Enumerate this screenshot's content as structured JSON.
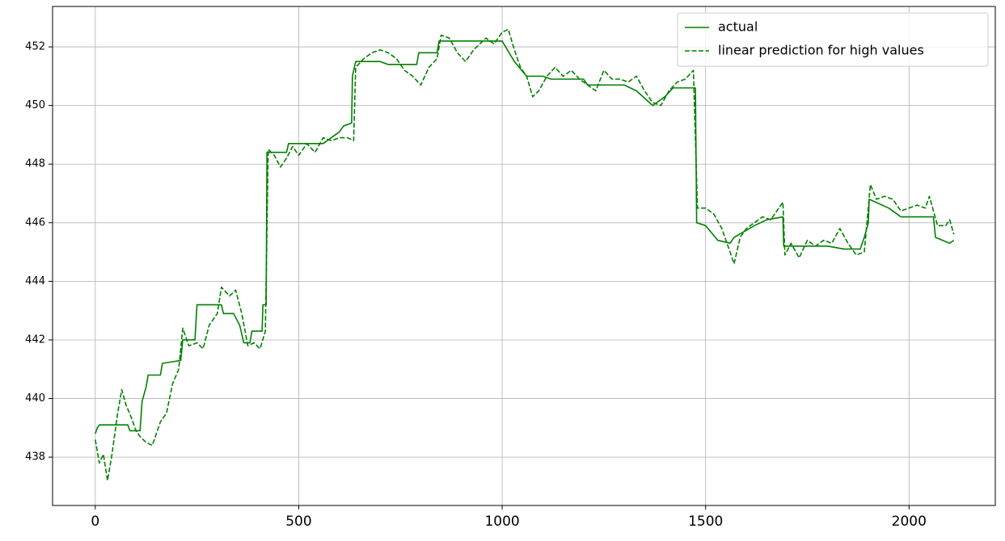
{
  "chart_data": {
    "type": "line",
    "xlim": [
      -105,
      2212
    ],
    "ylim": [
      436.35,
      453.38
    ],
    "xticks": [
      0,
      500,
      1000,
      1500,
      2000
    ],
    "yticks": [
      438,
      440,
      442,
      444,
      446,
      448,
      450,
      452
    ],
    "grid": true,
    "legend": "upper right",
    "series": [
      {
        "name": "actual",
        "color": "#008000",
        "dash": "solid",
        "x": [
          0,
          5,
          10,
          80,
          85,
          110,
          115,
          125,
          130,
          160,
          165,
          210,
          215,
          245,
          250,
          310,
          315,
          340,
          355,
          365,
          380,
          385,
          410,
          412,
          420,
          422,
          470,
          475,
          560,
          600,
          610,
          630,
          632,
          640,
          700,
          720,
          790,
          795,
          840,
          845,
          990,
          1000,
          1030,
          1060,
          1100,
          1120,
          1200,
          1210,
          1300,
          1330,
          1370,
          1400,
          1420,
          1475,
          1478,
          1500,
          1530,
          1560,
          1570,
          1620,
          1650,
          1690,
          1692,
          1750,
          1800,
          1840,
          1880,
          1890,
          1900,
          1902,
          1950,
          1980,
          2060,
          2065,
          2100,
          2110
        ],
        "values": [
          438.8,
          439.0,
          439.1,
          439.1,
          438.9,
          438.9,
          439.9,
          440.4,
          440.8,
          440.8,
          441.2,
          441.3,
          442.0,
          442.0,
          443.2,
          443.2,
          442.9,
          442.9,
          442.5,
          441.9,
          441.9,
          442.3,
          442.3,
          443.2,
          443.2,
          448.4,
          448.4,
          448.7,
          448.7,
          449.1,
          449.3,
          449.4,
          451.0,
          451.5,
          451.5,
          451.4,
          451.4,
          451.8,
          451.8,
          452.2,
          452.2,
          452.2,
          451.5,
          451.0,
          451.0,
          450.9,
          450.9,
          450.7,
          450.7,
          450.5,
          450.0,
          450.3,
          450.6,
          450.6,
          446.0,
          445.9,
          445.4,
          445.3,
          445.5,
          445.9,
          446.1,
          446.2,
          445.2,
          445.2,
          445.2,
          445.1,
          445.1,
          445.5,
          446.0,
          446.8,
          446.5,
          446.2,
          446.2,
          445.5,
          445.3,
          445.4
        ]
      },
      {
        "name": "linear prediction for high values",
        "color": "#008000",
        "dash": "dashed",
        "x": [
          0,
          10,
          20,
          30,
          40,
          55,
          65,
          75,
          90,
          100,
          110,
          125,
          140,
          160,
          175,
          190,
          205,
          215,
          230,
          250,
          265,
          280,
          300,
          310,
          330,
          345,
          360,
          375,
          390,
          405,
          418,
          425,
          440,
          455,
          470,
          485,
          500,
          520,
          540,
          560,
          580,
          600,
          620,
          635,
          640,
          660,
          680,
          700,
          720,
          740,
          760,
          780,
          800,
          820,
          840,
          850,
          870,
          890,
          910,
          930,
          960,
          980,
          1000,
          1015,
          1030,
          1045,
          1060,
          1075,
          1090,
          1110,
          1130,
          1150,
          1170,
          1190,
          1210,
          1230,
          1250,
          1270,
          1290,
          1310,
          1330,
          1350,
          1370,
          1390,
          1410,
          1430,
          1450,
          1470,
          1480,
          1500,
          1520,
          1540,
          1560,
          1570,
          1585,
          1600,
          1620,
          1640,
          1660,
          1680,
          1690,
          1695,
          1710,
          1730,
          1750,
          1770,
          1790,
          1810,
          1830,
          1850,
          1870,
          1890,
          1905,
          1920,
          1940,
          1960,
          1980,
          2000,
          2020,
          2040,
          2050,
          2070,
          2090,
          2100,
          2110
        ],
        "values": [
          438.6,
          437.8,
          438.1,
          437.2,
          438.0,
          439.5,
          440.3,
          439.8,
          439.3,
          438.9,
          438.7,
          438.5,
          438.4,
          439.2,
          439.5,
          440.5,
          441.0,
          442.4,
          441.8,
          441.9,
          441.7,
          442.5,
          442.9,
          443.8,
          443.5,
          443.7,
          442.9,
          441.8,
          441.9,
          441.7,
          442.3,
          448.5,
          448.3,
          447.9,
          448.2,
          448.6,
          448.3,
          448.7,
          448.4,
          448.9,
          448.8,
          448.9,
          448.9,
          448.8,
          451.3,
          451.6,
          451.8,
          451.9,
          451.8,
          451.6,
          451.2,
          451.0,
          450.7,
          451.3,
          451.6,
          452.4,
          452.3,
          451.8,
          451.5,
          451.9,
          452.3,
          452.1,
          452.5,
          452.6,
          451.9,
          451.3,
          451.0,
          450.3,
          450.5,
          451.0,
          451.3,
          451.0,
          451.2,
          450.9,
          450.7,
          450.5,
          451.2,
          450.9,
          450.9,
          450.8,
          451.0,
          450.5,
          450.1,
          450.0,
          450.5,
          450.8,
          450.9,
          451.2,
          446.5,
          446.5,
          446.3,
          445.8,
          445.0,
          444.6,
          445.5,
          445.8,
          446.0,
          446.2,
          446.1,
          446.5,
          446.7,
          444.9,
          445.3,
          444.8,
          445.4,
          445.2,
          445.4,
          445.3,
          445.8,
          445.3,
          444.9,
          445.0,
          447.3,
          446.8,
          446.9,
          446.8,
          446.4,
          446.5,
          446.6,
          446.5,
          446.9,
          445.9,
          445.9,
          446.1,
          445.6
        ]
      }
    ]
  }
}
